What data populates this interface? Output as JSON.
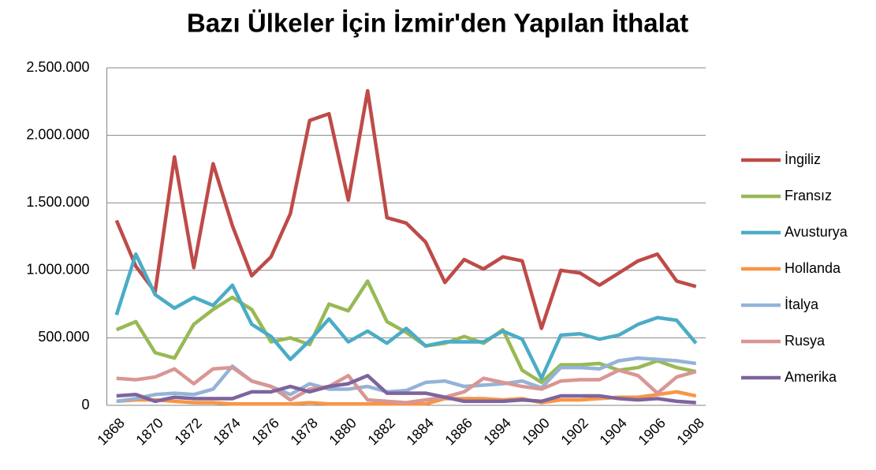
{
  "chart_data": {
    "type": "line",
    "title": "Bazı Ülkeler İçin İzmir'den Yapılan İthalat",
    "categories": [
      "1868",
      null,
      "1870",
      null,
      "1872",
      null,
      "1874",
      null,
      "1876",
      null,
      "1878",
      null,
      "1880",
      null,
      "1882",
      null,
      "1884",
      null,
      "1886",
      null,
      "1894",
      null,
      "1900",
      null,
      "1902",
      null,
      "1904",
      null,
      "1906",
      null,
      "1908"
    ],
    "ylim": [
      0,
      2500000
    ],
    "yticks": [
      0,
      {
        "value": 500000,
        "label": "500.000"
      },
      {
        "value": 1000000,
        "label": "1.000.000"
      },
      {
        "value": 1500000,
        "label": "1.500.000"
      },
      {
        "value": 2000000,
        "label": "2.000.000"
      },
      {
        "value": 2500000,
        "label": "2.500.000"
      }
    ],
    "grid": true,
    "legend": "right",
    "series": [
      {
        "name": "İngiliz",
        "color": "#be4b48",
        "values": [
          1370000,
          1030000,
          840000,
          1840000,
          1020000,
          1790000,
          1330000,
          960000,
          1100000,
          1420000,
          2110000,
          2160000,
          1520000,
          2330000,
          1390000,
          1350000,
          1210000,
          910000,
          1080000,
          1010000,
          1100000,
          1070000,
          570000,
          1000000,
          980000,
          890000,
          980000,
          1070000,
          1120000,
          920000,
          880000
        ]
      },
      {
        "name": "Fransız",
        "color": "#98b954",
        "values": [
          560000,
          620000,
          390000,
          350000,
          600000,
          710000,
          800000,
          710000,
          470000,
          500000,
          450000,
          750000,
          700000,
          920000,
          620000,
          540000,
          440000,
          460000,
          510000,
          460000,
          560000,
          260000,
          170000,
          300000,
          300000,
          310000,
          260000,
          280000,
          330000,
          280000,
          250000
        ]
      },
      {
        "name": "Avusturya",
        "color": "#4bacc6",
        "values": [
          670000,
          1120000,
          820000,
          720000,
          800000,
          740000,
          890000,
          600000,
          510000,
          340000,
          480000,
          640000,
          470000,
          550000,
          460000,
          570000,
          440000,
          470000,
          470000,
          470000,
          550000,
          490000,
          200000,
          520000,
          530000,
          490000,
          520000,
          600000,
          650000,
          630000,
          460000
        ]
      },
      {
        "name": "Hollanda",
        "color": "#f79646",
        "values": [
          30000,
          40000,
          40000,
          30000,
          20000,
          20000,
          10000,
          10000,
          10000,
          10000,
          20000,
          10000,
          10000,
          10000,
          10000,
          10000,
          10000,
          50000,
          50000,
          50000,
          40000,
          50000,
          20000,
          40000,
          40000,
          50000,
          60000,
          60000,
          80000,
          100000,
          70000
        ]
      },
      {
        "name": "İtalya",
        "color": "#95b3d7",
        "values": [
          30000,
          50000,
          80000,
          90000,
          80000,
          120000,
          290000,
          180000,
          140000,
          80000,
          160000,
          120000,
          120000,
          140000,
          100000,
          110000,
          170000,
          180000,
          140000,
          150000,
          160000,
          180000,
          130000,
          280000,
          280000,
          270000,
          330000,
          350000,
          340000,
          330000,
          310000
        ]
      },
      {
        "name": "Rusya",
        "color": "#d99694",
        "values": [
          200000,
          190000,
          210000,
          270000,
          160000,
          270000,
          280000,
          180000,
          140000,
          40000,
          120000,
          140000,
          220000,
          40000,
          30000,
          20000,
          40000,
          60000,
          100000,
          200000,
          170000,
          140000,
          120000,
          180000,
          190000,
          190000,
          260000,
          220000,
          90000,
          210000,
          250000
        ]
      },
      {
        "name": "Amerika",
        "color": "#7e649e",
        "values": [
          70000,
          80000,
          30000,
          60000,
          50000,
          50000,
          50000,
          100000,
          100000,
          140000,
          100000,
          140000,
          160000,
          220000,
          90000,
          90000,
          90000,
          60000,
          30000,
          30000,
          30000,
          40000,
          30000,
          70000,
          70000,
          70000,
          50000,
          40000,
          50000,
          30000,
          20000
        ]
      }
    ]
  }
}
